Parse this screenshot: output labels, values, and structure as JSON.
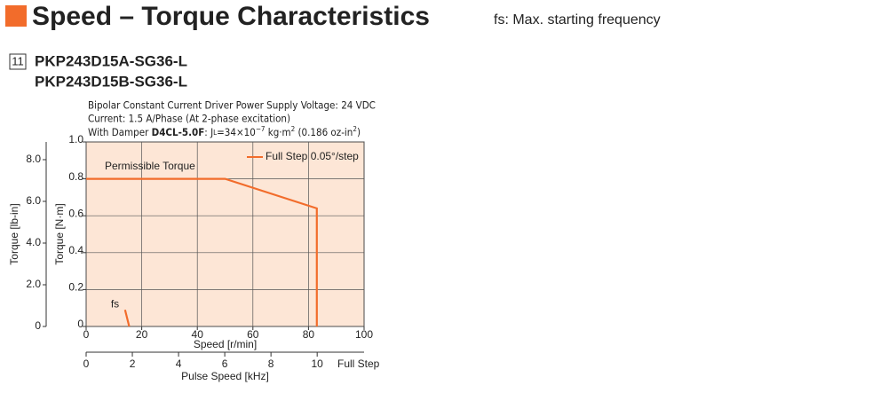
{
  "header": {
    "title": "Speed – Torque Characteristics",
    "note": "fs: Max. starting frequency",
    "number": "11",
    "models": [
      "PKP243D15A-SG36-L",
      "PKP243D15B-SG36-L"
    ]
  },
  "chart_data": {
    "type": "line",
    "conditions": [
      "Bipolar Constant Current Driver  Power Supply Voltage: 24 VDC",
      "Current: 1.5 A/Phase (At 2-phase excitation)"
    ],
    "damper": {
      "prefix": "With Damper ",
      "model": "D4CL-5.0F",
      "sep": ": J",
      "sub": "L",
      "inertia": "=34×10",
      "exp": "−7",
      "unit": " kg·m",
      "unit_exp": "2",
      "alt": " (0.186 oz-in",
      "alt_exp": "2",
      "end": ")"
    },
    "xlabel": "Speed [r/min]",
    "ylabel": "Torque [N·m]",
    "y2label": "Torque [lb-in]",
    "xlim": [
      0,
      100
    ],
    "xticks": [
      0,
      20,
      40,
      60,
      80,
      100
    ],
    "ylim": [
      0,
      1
    ],
    "yticks": [
      0,
      0.2,
      0.4,
      0.6,
      0.8,
      {
        "value": 1,
        "label": "1.0"
      }
    ],
    "y2lim": [
      0,
      8.85
    ],
    "y2ticks": [
      0,
      {
        "value": 2,
        "label": "2.0"
      },
      {
        "value": 4,
        "label": "4.0"
      },
      {
        "value": 6,
        "label": "6.0"
      },
      {
        "value": 8,
        "label": "8.0"
      }
    ],
    "x2label": "Pulse Speed [kHz]",
    "x2unit": "Full Step",
    "x2lim": [
      0,
      12.03
    ],
    "x2ticks": [
      0,
      2,
      4,
      6,
      8,
      10
    ],
    "series": [
      {
        "name": "Full Step 0.05°/step",
        "color": "#f26c2b",
        "x": [
          0,
          50,
          83,
          83
        ],
        "values": [
          0.8,
          0.8,
          0.64,
          0
        ]
      }
    ],
    "fs": {
      "label": "fs",
      "color": "#f26c2b",
      "x": [
        14,
        15.5
      ],
      "values": [
        0.09,
        0
      ]
    },
    "annotations": [
      "Permissible Torque"
    ],
    "grid": true,
    "legend": "upper right",
    "plot_background": "#fde6d6"
  }
}
